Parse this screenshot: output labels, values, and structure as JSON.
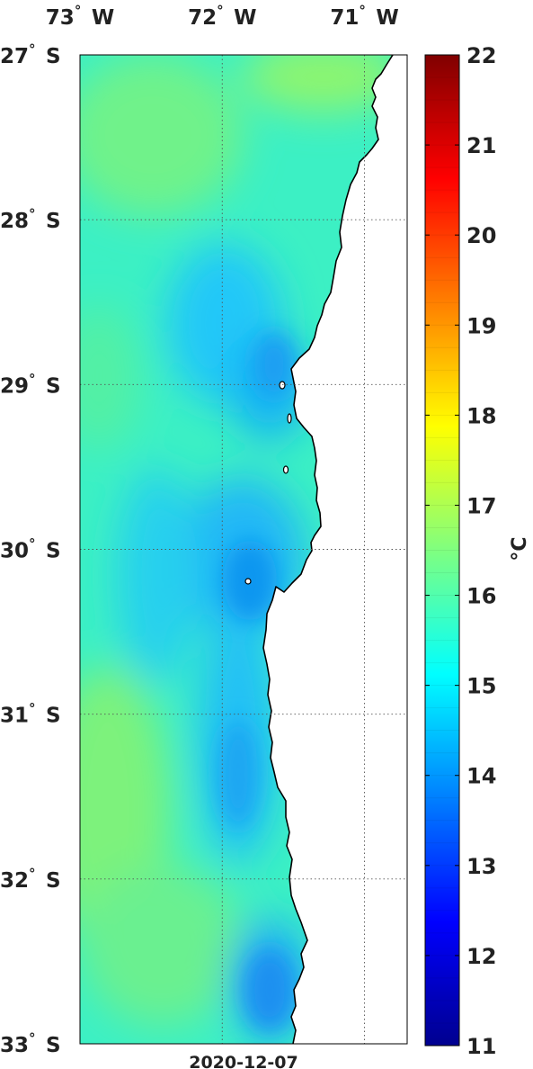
{
  "map": {
    "date": "2020-12-07",
    "lon_ticks": [
      {
        "value": -73,
        "deg": "73",
        "hemi": "W"
      },
      {
        "value": -72,
        "deg": "72",
        "hemi": "W"
      },
      {
        "value": -71,
        "deg": "71",
        "hemi": "W"
      }
    ],
    "lat_ticks": [
      {
        "value": -27,
        "deg": "27",
        "hemi": "S"
      },
      {
        "value": -28,
        "deg": "28",
        "hemi": "S"
      },
      {
        "value": -29,
        "deg": "29",
        "hemi": "S"
      },
      {
        "value": -30,
        "deg": "30",
        "hemi": "S"
      },
      {
        "value": -31,
        "deg": "31",
        "hemi": "S"
      },
      {
        "value": -32,
        "deg": "32",
        "hemi": "S"
      },
      {
        "value": -33,
        "deg": "33",
        "hemi": "S"
      }
    ],
    "degree_symbol": "°",
    "lon_range": [
      -73,
      -70.7
    ],
    "lat_range": [
      -33,
      -27
    ],
    "grid": "dotted",
    "land_color": "#ffffff",
    "coastline_color": "#000000"
  },
  "colorbar": {
    "label": "°C",
    "min": 11,
    "max": 22,
    "ticks": [
      "22",
      "21",
      "20",
      "19",
      "18",
      "17",
      "16",
      "15",
      "14",
      "13",
      "12",
      "11"
    ],
    "colormap": "jet"
  }
}
